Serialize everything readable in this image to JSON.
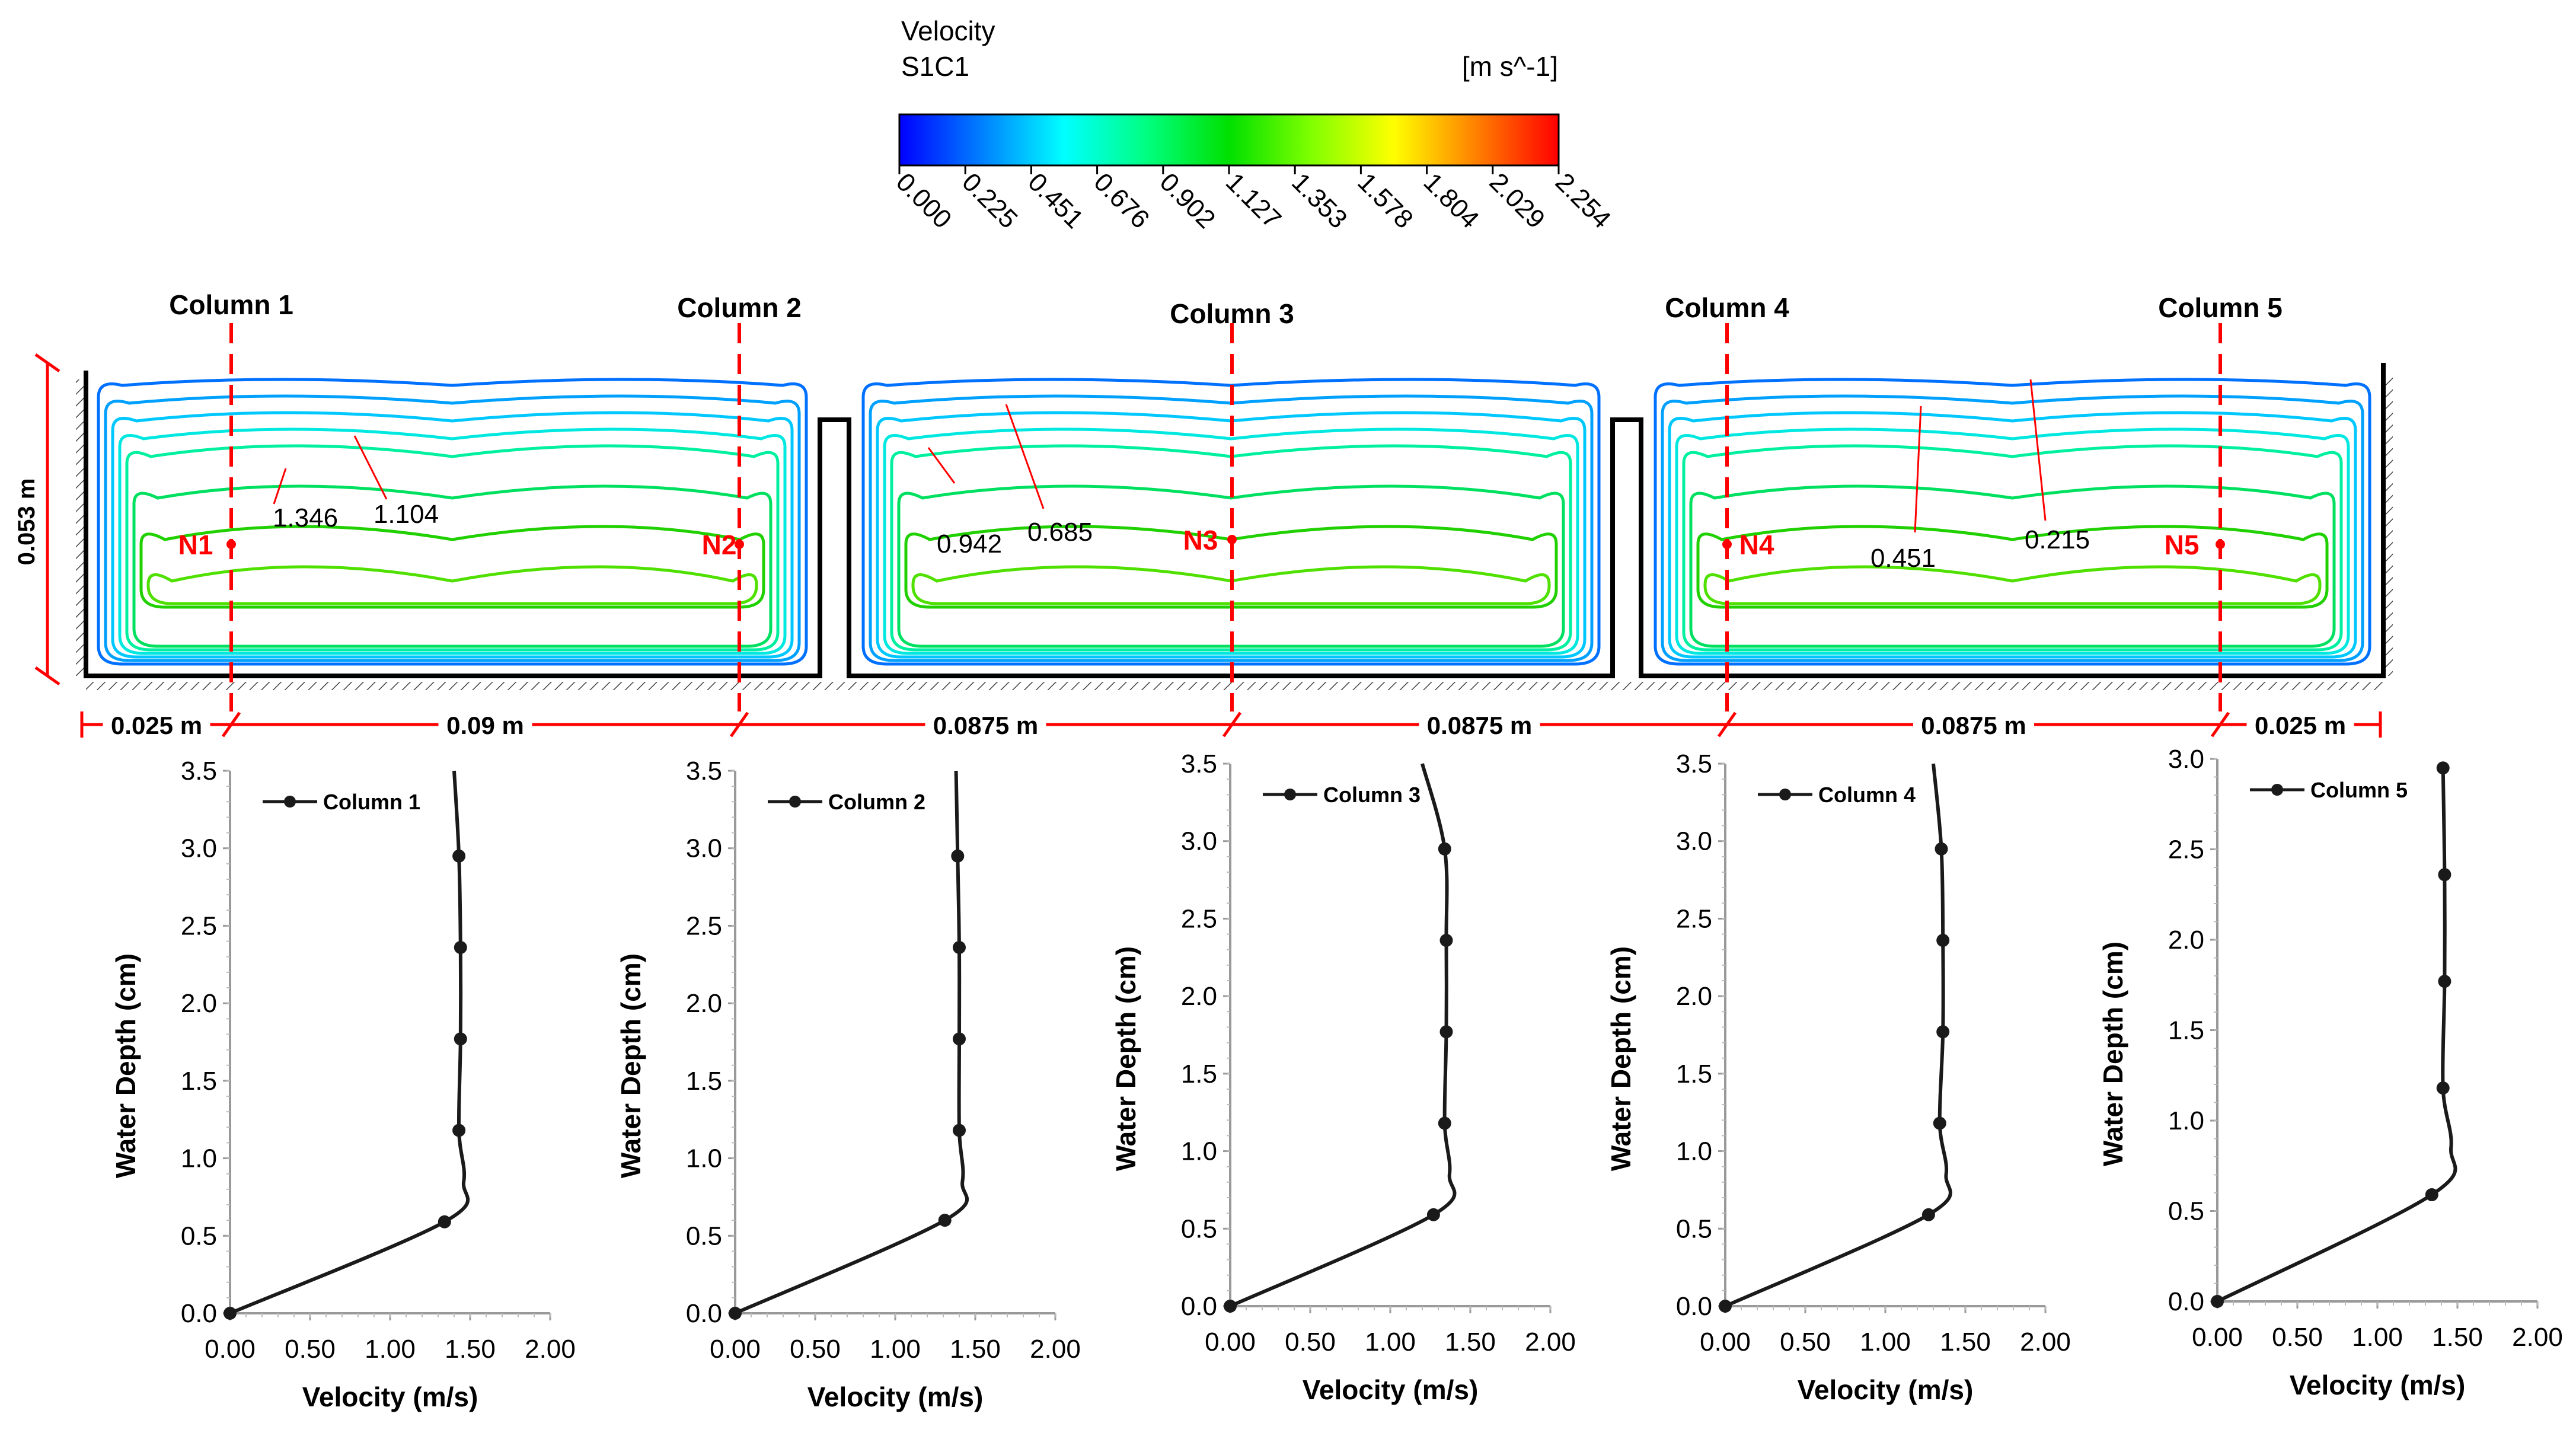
{
  "colorbar": {
    "title": "Velocity",
    "subtitle": "S1C1",
    "unit": "[m s^-1]",
    "ticks": [
      "0.000",
      "0.225",
      "0.451",
      "0.676",
      "0.902",
      "1.127",
      "1.353",
      "1.578",
      "1.804",
      "2.029",
      "2.254"
    ],
    "stops": [
      "#0000ff",
      "#0080ff",
      "#00ffff",
      "#00ff80",
      "#00e000",
      "#80ff00",
      "#ffff00",
      "#ff8000",
      "#ff0000"
    ]
  },
  "contour": {
    "column_labels": [
      "Column 1",
      "Column 2",
      "Column 3",
      "Column 4",
      "Column 5"
    ],
    "node_labels": [
      "N1",
      "N2",
      "N3",
      "N4",
      "N5"
    ],
    "depth_label": "0.053 m",
    "spacing_labels": [
      "0.025 m",
      "0.09 m",
      "0.0875 m",
      "0.0875 m",
      "0.0875 m",
      "0.025 m"
    ],
    "contour_labels": [
      "1.346",
      "1.104",
      "0.942",
      "0.685",
      "0.451",
      "0.215"
    ],
    "contour_colors": [
      "#0070ff",
      "#00a0ff",
      "#00c8ff",
      "#00e8e0",
      "#00f0a0",
      "#00e060",
      "#20d000",
      "#50e000"
    ],
    "accent_color": "#ff0000"
  },
  "chart_data": [
    {
      "type": "line",
      "title": "",
      "xlabel": "Velocity (m/s)",
      "ylabel": "Water Depth (cm)",
      "xlim": [
        0,
        2
      ],
      "ylim": [
        0,
        3.5
      ],
      "xticks": [
        "0.00",
        "0.50",
        "1.00",
        "1.50",
        "2.00"
      ],
      "yticks": [
        "0.0",
        "0.5",
        "1.0",
        "1.5",
        "2.0",
        "2.5",
        "3.0",
        "3.5"
      ],
      "series": [
        {
          "name": "Column 1",
          "markers": [
            [
              0,
              0
            ],
            [
              1.34,
              0.59
            ],
            [
              1.43,
              1.18
            ],
            [
              1.44,
              1.77
            ],
            [
              1.44,
              2.36
            ],
            [
              1.43,
              2.95
            ]
          ],
          "curve": [
            [
              0,
              0
            ],
            [
              1.34,
              0.59
            ],
            [
              1.46,
              0.85
            ],
            [
              1.43,
              1.18
            ],
            [
              1.44,
              1.77
            ],
            [
              1.44,
              2.36
            ],
            [
              1.43,
              2.95
            ],
            [
              1.4,
              3.5
            ]
          ]
        }
      ]
    },
    {
      "type": "line",
      "title": "",
      "xlabel": "Velocity (m/s)",
      "ylabel": "Water Depth (cm)",
      "xlim": [
        0,
        2
      ],
      "ylim": [
        0,
        3.5
      ],
      "xticks": [
        "0.00",
        "0.50",
        "1.00",
        "1.50",
        "2.00"
      ],
      "yticks": [
        "0.0",
        "0.5",
        "1.0",
        "1.5",
        "2.0",
        "2.5",
        "3.0",
        "3.5"
      ],
      "series": [
        {
          "name": "Column 2",
          "markers": [
            [
              0,
              0
            ],
            [
              1.31,
              0.6
            ],
            [
              1.4,
              1.18
            ],
            [
              1.4,
              1.77
            ],
            [
              1.4,
              2.36
            ],
            [
              1.39,
              2.95
            ]
          ],
          "curve": [
            [
              0,
              0
            ],
            [
              1.31,
              0.6
            ],
            [
              1.42,
              0.85
            ],
            [
              1.4,
              1.18
            ],
            [
              1.4,
              1.77
            ],
            [
              1.4,
              2.36
            ],
            [
              1.39,
              2.95
            ],
            [
              1.38,
              3.5
            ]
          ]
        }
      ]
    },
    {
      "type": "line",
      "title": "",
      "xlabel": "Velocity (m/s)",
      "ylabel": "Water Depth (cm)",
      "xlim": [
        0,
        2
      ],
      "ylim": [
        0,
        3.5
      ],
      "xticks": [
        "0.00",
        "0.50",
        "1.00",
        "1.50",
        "2.00"
      ],
      "yticks": [
        "0.0",
        "0.5",
        "1.0",
        "1.5",
        "2.0",
        "2.5",
        "3.0",
        "3.5"
      ],
      "series": [
        {
          "name": "Column 3",
          "markers": [
            [
              0,
              0
            ],
            [
              1.27,
              0.59
            ],
            [
              1.34,
              1.18
            ],
            [
              1.35,
              1.77
            ],
            [
              1.35,
              2.36
            ],
            [
              1.34,
              2.95
            ]
          ],
          "curve": [
            [
              0,
              0
            ],
            [
              1.27,
              0.59
            ],
            [
              1.37,
              0.85
            ],
            [
              1.34,
              1.18
            ],
            [
              1.35,
              1.77
            ],
            [
              1.35,
              2.36
            ],
            [
              1.34,
              2.95
            ],
            [
              1.2,
              3.5
            ]
          ]
        }
      ]
    },
    {
      "type": "line",
      "title": "",
      "xlabel": "Velocity (m/s)",
      "ylabel": "Water Depth (cm)",
      "xlim": [
        0,
        2
      ],
      "ylim": [
        0,
        3.5
      ],
      "xticks": [
        "0.00",
        "0.50",
        "1.00",
        "1.50",
        "2.00"
      ],
      "yticks": [
        "0.0",
        "0.5",
        "1.0",
        "1.5",
        "2.0",
        "2.5",
        "3.0",
        "3.5"
      ],
      "series": [
        {
          "name": "Column 4",
          "markers": [
            [
              0,
              0
            ],
            [
              1.27,
              0.59
            ],
            [
              1.34,
              1.18
            ],
            [
              1.36,
              1.77
            ],
            [
              1.36,
              2.36
            ],
            [
              1.35,
              2.95
            ]
          ],
          "curve": [
            [
              0,
              0
            ],
            [
              1.27,
              0.59
            ],
            [
              1.38,
              0.85
            ],
            [
              1.34,
              1.18
            ],
            [
              1.36,
              1.77
            ],
            [
              1.36,
              2.36
            ],
            [
              1.35,
              2.95
            ],
            [
              1.3,
              3.5
            ]
          ]
        }
      ]
    },
    {
      "type": "line",
      "title": "",
      "xlabel": "Velocity (m/s)",
      "ylabel": "Water Depth (cm)",
      "xlim": [
        0,
        2
      ],
      "ylim": [
        0,
        3.0
      ],
      "xticks": [
        "0.00",
        "0.50",
        "1.00",
        "1.50",
        "2.00"
      ],
      "yticks": [
        "0.0",
        "0.5",
        "1.0",
        "1.5",
        "2.0",
        "2.5",
        "3.0"
      ],
      "series": [
        {
          "name": "Column 5",
          "markers": [
            [
              0,
              0
            ],
            [
              1.34,
              0.59
            ],
            [
              1.41,
              1.18
            ],
            [
              1.42,
              1.77
            ],
            [
              1.42,
              2.36
            ],
            [
              1.41,
              2.95
            ]
          ],
          "curve": [
            [
              0,
              0
            ],
            [
              1.34,
              0.59
            ],
            [
              1.46,
              0.85
            ],
            [
              1.41,
              1.18
            ],
            [
              1.42,
              1.77
            ],
            [
              1.42,
              2.36
            ],
            [
              1.41,
              2.95
            ]
          ]
        }
      ]
    }
  ]
}
